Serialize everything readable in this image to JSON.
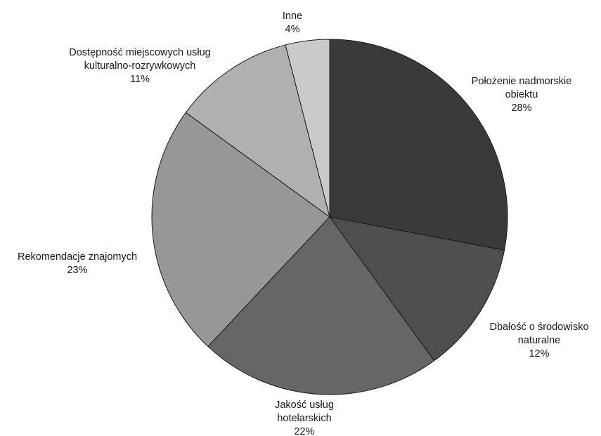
{
  "chart_data": {
    "type": "pie",
    "start_angle_deg": 0,
    "direction": "clockwise",
    "slices": [
      {
        "label_lines": [
          "Położenie nadmorskie",
          "obiektu"
        ],
        "percent_label": "28%",
        "value": 28,
        "color": "#3a3a3a"
      },
      {
        "label_lines": [
          "Dbałość o środowisko",
          "naturalne"
        ],
        "percent_label": "12%",
        "value": 12,
        "color": "#4e4e4e"
      },
      {
        "label_lines": [
          "Jakość usług",
          "hotelarskich"
        ],
        "percent_label": "22%",
        "value": 22,
        "color": "#666666"
      },
      {
        "label_lines": [
          "Rekomendacje znajomych"
        ],
        "percent_label": "23%",
        "value": 23,
        "color": "#979797"
      },
      {
        "label_lines": [
          "Dostępność miejscowych usług",
          "kulturalno-rozrywkowych"
        ],
        "percent_label": "11%",
        "value": 11,
        "color": "#b0b0b0"
      },
      {
        "label_lines": [
          "Inne"
        ],
        "percent_label": "4%",
        "value": 4,
        "color": "#cacaca"
      }
    ]
  }
}
